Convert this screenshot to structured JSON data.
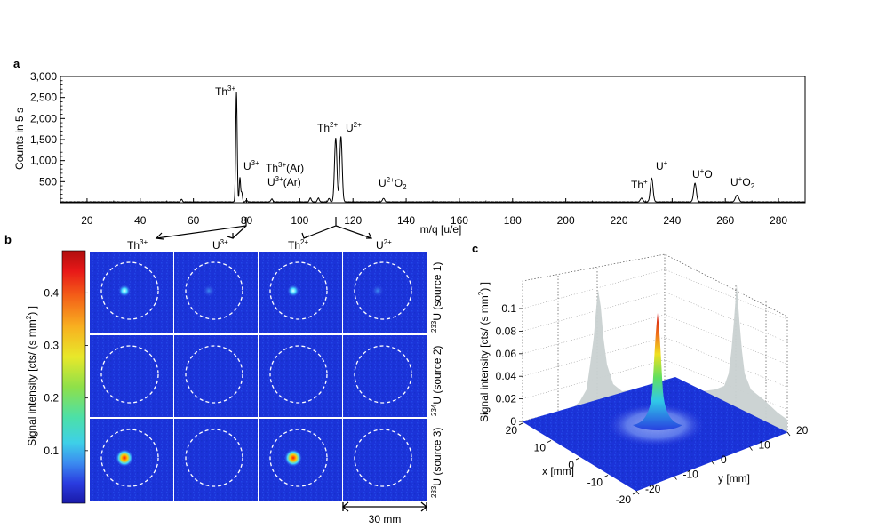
{
  "panel_labels": {
    "a": "a",
    "b": "b",
    "c": "c"
  },
  "panel_a": {
    "ylabel": "Counts in 5 s",
    "xlabel": "m/q [u/e]",
    "xlim": [
      10,
      290
    ],
    "ylim": [
      0,
      3000
    ],
    "xticks": [
      20,
      40,
      60,
      80,
      100,
      120,
      140,
      160,
      180,
      200,
      220,
      240,
      260,
      280
    ],
    "yticks": [
      500,
      1000,
      1500,
      2000,
      2500,
      3000
    ],
    "ytick_labels": [
      "500",
      "1,000",
      "1,500",
      "2,000",
      "2,500",
      "3,000"
    ],
    "peak_labels": [
      {
        "base": "Th",
        "sup": "3+",
        "suffix": ""
      },
      {
        "base": "U",
        "sup": "3+",
        "suffix": ""
      },
      {
        "base": "Th",
        "sup": "3+",
        "suffix": "(Ar)"
      },
      {
        "base": "U",
        "sup": "3+",
        "suffix": "(Ar)"
      },
      {
        "base": "Th",
        "sup": "2+",
        "suffix": ""
      },
      {
        "base": "U",
        "sup": "2+",
        "suffix": ""
      },
      {
        "base": "U",
        "sup": "2+",
        "suffix": "O",
        "sub": "2"
      },
      {
        "base": "Th",
        "sup": "+",
        "suffix": ""
      },
      {
        "base": "U",
        "sup": "+",
        "suffix": ""
      },
      {
        "base": "U",
        "sup": "+",
        "suffix": "O"
      },
      {
        "base": "U",
        "sup": "+",
        "suffix": "O",
        "sub": "2"
      }
    ]
  },
  "panel_b": {
    "colorbar_label": "Signal intensity [cts/ (s mm",
    "colorbar_label_sup": "2",
    "colorbar_label_end": ") ]",
    "colorbar_ticks": [
      0.1,
      0.2,
      0.3,
      0.4
    ],
    "colorbar_range": [
      0,
      0.48
    ],
    "columns": [
      {
        "base": "Th",
        "sup": "3+"
      },
      {
        "base": "U",
        "sup": "3+"
      },
      {
        "base": "Th",
        "sup": "2+"
      },
      {
        "base": "U",
        "sup": "2+"
      }
    ],
    "rows": [
      {
        "iso": "233",
        "text": "U (source 1)"
      },
      {
        "iso": "234",
        "text": "U (source 2)"
      },
      {
        "iso": "233",
        "text": "U (source 3)"
      }
    ],
    "spot_intensity": [
      [
        0.35,
        0.03,
        0.25,
        0.01
      ],
      [
        0.0,
        0.0,
        0.0,
        0.0
      ],
      [
        0.48,
        0.0,
        0.48,
        0.0
      ]
    ],
    "scale_bar": "30 mm"
  },
  "panel_c": {
    "zlabel": "Signal intensity [cts/ (s mm",
    "zlabel_sup": "2",
    "zlabel_end": ") ]",
    "zticks": [
      "0",
      "0.02",
      "0.04",
      "0.06",
      "0.08",
      "0.1"
    ],
    "xlabel": "x [mm]",
    "ylabel": "y [mm]",
    "xticks": [
      "20",
      "10",
      "0",
      "-10",
      "-20"
    ],
    "yticks": [
      "-20",
      "-10",
      "0",
      "10",
      "20"
    ]
  },
  "chart_data": [
    {
      "type": "line",
      "panel": "a",
      "xlabel": "m/q [u/e]",
      "ylabel": "Counts in 5 s",
      "xlim": [
        10,
        290
      ],
      "ylim": [
        0,
        3000
      ],
      "baseline": 20,
      "peaks": [
        {
          "x": 55.5,
          "y": 60,
          "w": 0.3
        },
        {
          "x": 76.2,
          "y": 2600,
          "w": 0.28
        },
        {
          "x": 77.5,
          "y": 580,
          "w": 0.25
        },
        {
          "x": 78.2,
          "y": 220,
          "w": 0.25
        },
        {
          "x": 80.0,
          "y": 40,
          "w": 0.3
        },
        {
          "x": 89.5,
          "y": 70,
          "w": 0.35
        },
        {
          "x": 104.0,
          "y": 90,
          "w": 0.35
        },
        {
          "x": 107.0,
          "y": 90,
          "w": 0.35
        },
        {
          "x": 111.0,
          "y": 80,
          "w": 0.35
        },
        {
          "x": 113.5,
          "y": 1520,
          "w": 0.45
        },
        {
          "x": 115.5,
          "y": 1550,
          "w": 0.45
        },
        {
          "x": 131.5,
          "y": 85,
          "w": 0.4
        },
        {
          "x": 228.5,
          "y": 90,
          "w": 0.45
        },
        {
          "x": 232.3,
          "y": 560,
          "w": 0.5
        },
        {
          "x": 248.6,
          "y": 440,
          "w": 0.5
        },
        {
          "x": 264.4,
          "y": 160,
          "w": 0.6
        }
      ]
    }
  ]
}
